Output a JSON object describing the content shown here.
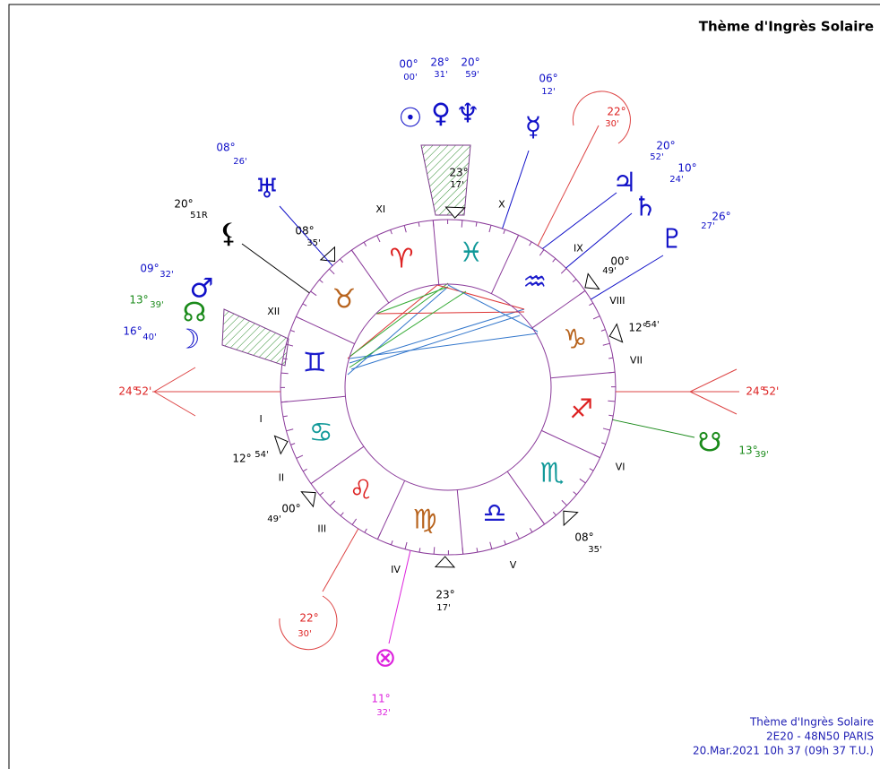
{
  "title": "Thème d'Ingrès Solaire",
  "footer": [
    "Thème d'Ingrès Solaire",
    "2E20 - 48N50  PARIS",
    "20.Mar.2021 10h 37 (09h 37 T.U.)"
  ],
  "signs": [
    "♈",
    "♉",
    "♊",
    "♋",
    "♌",
    "♍",
    "♎",
    "♏",
    "♐",
    "♑",
    "♒",
    "♓"
  ],
  "houses": [
    "I",
    "II",
    "III",
    "IV",
    "V",
    "VI",
    "VII",
    "VIII",
    "IX",
    "X",
    "XI",
    "XII"
  ],
  "axis": [
    {
      "deg": "24°",
      "min": "52'"
    },
    {
      "deg": "24°",
      "min": "52'"
    }
  ],
  "cusps": [
    {
      "deg": "23°",
      "min": "17'"
    },
    {
      "deg": "08°",
      "min": "35'"
    },
    {
      "deg": "00°",
      "min": "49'"
    },
    {
      "deg": "12°",
      "min": "54'"
    },
    {
      "deg": "12°",
      "min": "54'"
    },
    {
      "deg": "00°",
      "min": "49'"
    },
    {
      "deg": "23°",
      "min": "17'"
    },
    {
      "deg": "08°",
      "min": "35'"
    }
  ],
  "planets": [
    {
      "glyph": "☉",
      "deg": "00°",
      "min": "00'",
      "color": "#1010c8"
    },
    {
      "glyph": "♀",
      "deg": "28°",
      "min": "31'",
      "color": "#1010c8"
    },
    {
      "glyph": "♆",
      "deg": "20°",
      "min": "59'",
      "color": "#1010c8"
    },
    {
      "glyph": "☿",
      "deg": "06°",
      "min": "12'",
      "color": "#1010c8"
    },
    {
      "glyph": "♃",
      "deg": "20°",
      "min": "52'",
      "color": "#1010c8"
    },
    {
      "glyph": "♄",
      "deg": "10°",
      "min": "24'",
      "color": "#1010c8"
    },
    {
      "glyph": "♇",
      "deg": "26°",
      "min": "27'",
      "color": "#1010c8"
    },
    {
      "glyph": "♅",
      "deg": "08°",
      "min": "26'",
      "color": "#1010c8"
    },
    {
      "glyph": "⚸",
      "deg": "20°",
      "min": "51R",
      "color": "#000000"
    },
    {
      "glyph": "♂",
      "deg": "09°",
      "min": "32'",
      "color": "#1010c8"
    },
    {
      "glyph": "☊",
      "deg": "13°",
      "min": "39'",
      "color": "#1a8a1a"
    },
    {
      "glyph": "☽",
      "deg": "16°",
      "min": "40'",
      "color": "#1010c8"
    },
    {
      "glyph": "☋",
      "deg": "13°",
      "min": "39'",
      "color": "#1a8a1a"
    },
    {
      "glyph": "⊗",
      "deg": "11°",
      "min": "32'",
      "color": "#dd22dd"
    }
  ],
  "vertex": [
    {
      "deg": "22°",
      "min": "30'"
    },
    {
      "deg": "22°",
      "min": "30'"
    }
  ]
}
